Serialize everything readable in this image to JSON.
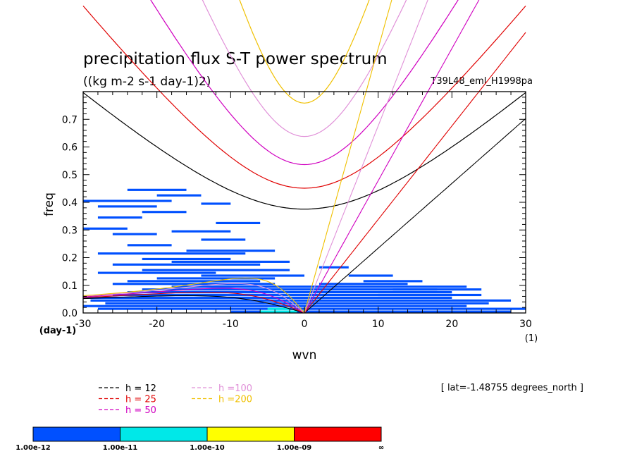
{
  "chart_data": {
    "type": "heatmap",
    "title": "precipitation flux S-T power spectrum",
    "subtitle": "((kg m-2 s-1 day-1)2)",
    "run_label": "T39L48_eml_H1998pa",
    "xlabel": "wvn",
    "xunit": "(1)",
    "ylabel": "freq",
    "yunit": "(day-1)",
    "xlim": [
      -30,
      30
    ],
    "ylim": [
      0,
      0.8
    ],
    "xticks": [
      -30,
      -20,
      -10,
      0,
      10,
      20,
      30
    ],
    "yticks": [
      "0.0",
      "0.1",
      "0.2",
      "0.3",
      "0.4",
      "0.5",
      "0.6",
      "0.7"
    ],
    "lat_note": "[ lat=-1.48755 degrees_north ]",
    "dispersion_curves": [
      {
        "label": "h = 12",
        "h": 12,
        "color": "#000000"
      },
      {
        "label": "h = 25",
        "h": 25,
        "color": "#e00000"
      },
      {
        "label": "h = 50",
        "h": 50,
        "color": "#d000c0"
      },
      {
        "label": "h =100",
        "h": 100,
        "color": "#e090d8"
      },
      {
        "label": "h =200",
        "h": 200,
        "color": "#f0c000"
      }
    ],
    "colorbar": {
      "labels": [
        "1.00e-12",
        "1.00e-11",
        "1.00e-10",
        "1.00e-09",
        "∞"
      ],
      "colors": [
        "#0050ff",
        "#00e8e8",
        "#ffff00",
        "#ff0000"
      ]
    },
    "spectrum_patches": [
      {
        "y": 0.005,
        "x0": -10,
        "x1": 28,
        "level": 0
      },
      {
        "y": 0.015,
        "x0": -28,
        "x1": 30,
        "level": 0
      },
      {
        "y": 0.025,
        "x0": -30,
        "x1": 22,
        "level": 0
      },
      {
        "y": 0.035,
        "x0": -27,
        "x1": 25,
        "level": 0
      },
      {
        "y": 0.045,
        "x0": -29,
        "x1": 28,
        "level": 0
      },
      {
        "y": 0.055,
        "x0": -30,
        "x1": 20,
        "level": 0
      },
      {
        "y": 0.065,
        "x0": -26,
        "x1": 24,
        "level": 0
      },
      {
        "y": 0.075,
        "x0": -24,
        "x1": 20,
        "level": 0
      },
      {
        "y": 0.085,
        "x0": -22,
        "x1": 18,
        "level": 0
      },
      {
        "y": 0.095,
        "x0": -18,
        "x1": 22,
        "level": 0
      },
      {
        "y": 0.105,
        "x0": -26,
        "x1": -4,
        "level": 0
      },
      {
        "y": 0.105,
        "x0": 2,
        "x1": 14,
        "level": 0
      },
      {
        "y": 0.115,
        "x0": -24,
        "x1": -6,
        "level": 0
      },
      {
        "y": 0.125,
        "x0": -20,
        "x1": -4,
        "level": 0
      },
      {
        "y": 0.135,
        "x0": -14,
        "x1": 0,
        "level": 0
      },
      {
        "y": 0.145,
        "x0": -28,
        "x1": -12,
        "level": 0
      },
      {
        "y": 0.155,
        "x0": -22,
        "x1": -2,
        "level": 0
      },
      {
        "y": 0.165,
        "x0": 2,
        "x1": 6,
        "level": 0
      },
      {
        "y": 0.175,
        "x0": -26,
        "x1": -6,
        "level": 0
      },
      {
        "y": 0.185,
        "x0": -18,
        "x1": -2,
        "level": 0
      },
      {
        "y": 0.195,
        "x0": -22,
        "x1": -10,
        "level": 0
      },
      {
        "y": 0.215,
        "x0": -28,
        "x1": -8,
        "level": 0
      },
      {
        "y": 0.225,
        "x0": -16,
        "x1": -4,
        "level": 0
      },
      {
        "y": 0.245,
        "x0": -24,
        "x1": -18,
        "level": 0
      },
      {
        "y": 0.265,
        "x0": -14,
        "x1": -8,
        "level": 0
      },
      {
        "y": 0.285,
        "x0": -26,
        "x1": -20,
        "level": 0
      },
      {
        "y": 0.295,
        "x0": -18,
        "x1": -10,
        "level": 0
      },
      {
        "y": 0.305,
        "x0": -30,
        "x1": -24,
        "level": 0
      },
      {
        "y": 0.325,
        "x0": -12,
        "x1": -6,
        "level": 0
      },
      {
        "y": 0.345,
        "x0": -28,
        "x1": -22,
        "level": 0
      },
      {
        "y": 0.365,
        "x0": -22,
        "x1": -16,
        "level": 0
      },
      {
        "y": 0.385,
        "x0": -28,
        "x1": -20,
        "level": 0
      },
      {
        "y": 0.395,
        "x0": -14,
        "x1": -10,
        "level": 0
      },
      {
        "y": 0.405,
        "x0": -30,
        "x1": -18,
        "level": 0
      },
      {
        "y": 0.425,
        "x0": -20,
        "x1": -14,
        "level": 0
      },
      {
        "y": 0.445,
        "x0": -24,
        "x1": -16,
        "level": 0
      },
      {
        "y": 0.065,
        "x0": 10,
        "x1": 20,
        "level": 0
      },
      {
        "y": 0.085,
        "x0": 12,
        "x1": 24,
        "level": 0
      },
      {
        "y": 0.115,
        "x0": 8,
        "x1": 16,
        "level": 0
      },
      {
        "y": 0.135,
        "x0": 6,
        "x1": 12,
        "level": 0
      },
      {
        "y": 0.005,
        "x0": -6,
        "x1": -1,
        "level": 1
      },
      {
        "y": 0.015,
        "x0": -5,
        "x1": -2,
        "level": 1
      }
    ]
  }
}
